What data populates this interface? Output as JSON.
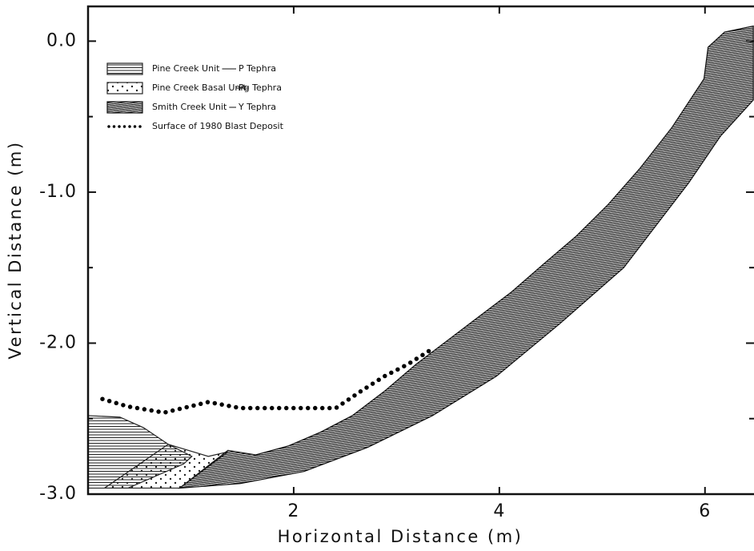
{
  "chart_data": {
    "type": "area",
    "xlabel": "Horizontal Distance (m)",
    "ylabel": "Vertical Distance (m)",
    "xlim": [
      0,
      6.5
    ],
    "ylim": [
      -3.0,
      0.23
    ],
    "xticks": [
      2,
      4,
      6
    ],
    "yticks": [
      {
        "value": 0,
        "label": "0.0"
      },
      {
        "value": -1,
        "label": "-1.0"
      },
      {
        "value": -2,
        "label": "-2.0"
      },
      {
        "value": -3,
        "label": "-3.0"
      }
    ],
    "yminorticks": [
      -0.5,
      -1.5,
      -2.5
    ],
    "series": [
      {
        "name": "Pine Creek Unit",
        "tephra": "P Tephra",
        "color": "#222222",
        "pattern": "horizontal",
        "x": [
          0,
          0.31,
          0.54,
          0.78,
          1.01,
          0.93,
          0.39,
          0
        ],
        "values": [
          -2.48,
          -2.49,
          -2.56,
          -2.67,
          -2.75,
          -2.8,
          -2.96,
          -2.96
        ]
      },
      {
        "name": "Pine Creek Basal Unit",
        "tephra": "Pg Tephra",
        "color": "#222222",
        "pattern": "dots",
        "x": [
          0.78,
          1.17,
          1.36,
          0.89,
          0.16
        ],
        "values": [
          -2.67,
          -2.75,
          -2.72,
          -2.96,
          -2.96
        ]
      },
      {
        "name": "Smith Creek Unit",
        "tephra": "Y Tephra",
        "color": "#111111",
        "pattern": "dense",
        "x": [
          1.36,
          1.63,
          1.95,
          2.26,
          2.57,
          2.88,
          3.19,
          3.5,
          3.81,
          4.12,
          4.44,
          4.75,
          5.06,
          5.37,
          5.68,
          5.99,
          6.03,
          6.19,
          6.47,
          6.47,
          6.15,
          5.84,
          5.21,
          4.59,
          3.97,
          3.35,
          2.72,
          2.1,
          1.48,
          0.89
        ],
        "values": [
          -2.71,
          -2.74,
          -2.68,
          -2.59,
          -2.48,
          -2.32,
          -2.14,
          -1.98,
          -1.82,
          -1.66,
          -1.47,
          -1.29,
          -1.08,
          -0.84,
          -0.57,
          -0.25,
          -0.04,
          0.06,
          0.1,
          -0.39,
          -0.63,
          -0.94,
          -1.5,
          -1.87,
          -2.22,
          -2.48,
          -2.69,
          -2.85,
          -2.93,
          -2.96
        ]
      },
      {
        "name": "Surface of 1980 Blast Deposit",
        "color": "#000000",
        "pattern": "dotted-line",
        "x": [
          0.14,
          0.39,
          0.74,
          1.17,
          1.48,
          1.95,
          2.41,
          2.65,
          2.88,
          3.11,
          3.32
        ],
        "values": [
          -2.37,
          -2.42,
          -2.46,
          -2.39,
          -2.43,
          -2.43,
          -2.43,
          -2.32,
          -2.22,
          -2.14,
          -2.05
        ]
      }
    ]
  }
}
